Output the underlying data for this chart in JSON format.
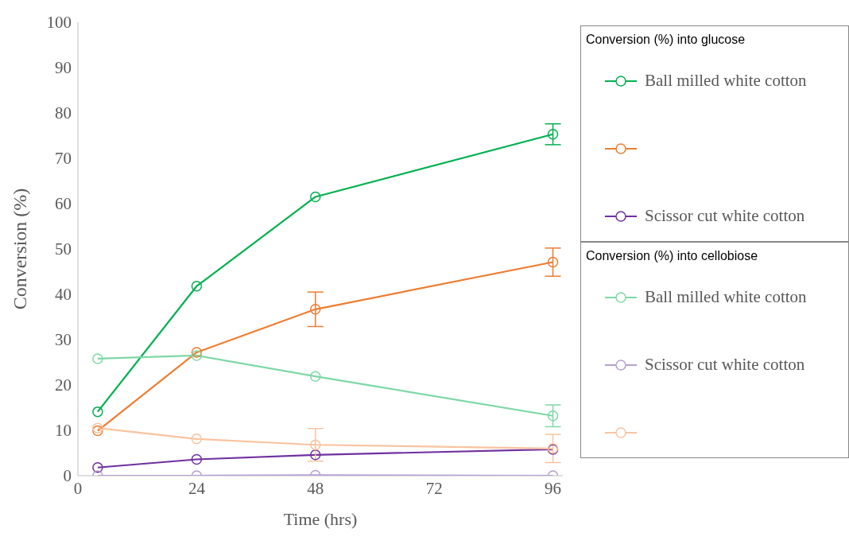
{
  "chart_data": {
    "type": "line",
    "xlabel": "Time (hrs)",
    "ylabel": "Conversion (%)",
    "x": [
      4,
      24,
      48,
      96
    ],
    "xlim": [
      0,
      98
    ],
    "xticks": [
      0,
      24,
      48,
      72,
      96
    ],
    "ylim": [
      0,
      100
    ],
    "yticks": [
      0,
      10,
      20,
      30,
      40,
      50,
      60,
      70,
      80,
      90,
      100
    ],
    "grid": false,
    "marker": "circle",
    "line_style": "solid",
    "legend": "right",
    "legend_title": "Conversion (%) into glucose",
    "annotations": [
      "Conversion (%) into cellobiose"
    ],
    "series": [
      {
        "name": "Ball milled white cotton",
        "color": "#00b050",
        "values": [
          14.1,
          41.8,
          61.5,
          75.3
        ],
        "errors": [
          null,
          null,
          null,
          2.3
        ]
      },
      {
        "color": "#ed7d31",
        "values": [
          9.9,
          27.2,
          36.7,
          47.1
        ],
        "errors": [
          null,
          null,
          3.8,
          3.1
        ]
      },
      {
        "name": "Scissor cut white cotton",
        "color": "#7030a0",
        "values": [
          1.8,
          3.6,
          4.6,
          5.8
        ]
      },
      {
        "name": "Ball milled white cotton",
        "color": "#7fd8a6",
        "values": [
          25.8,
          26.5,
          21.9,
          13.2
        ],
        "errors": [
          null,
          null,
          null,
          2.4
        ]
      },
      {
        "name": "Scissor cut white cotton",
        "color": "#b4a0d0",
        "values": [
          0,
          0,
          0.1,
          0
        ]
      },
      {
        "color": "#f8c4a0",
        "values": [
          10.5,
          8.1,
          6.8,
          6.0
        ],
        "errors": [
          null,
          null,
          3.6,
          3.1
        ]
      }
    ]
  }
}
